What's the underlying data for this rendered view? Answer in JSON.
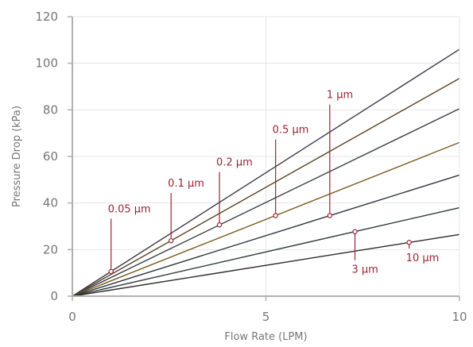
{
  "chart_data": {
    "type": "line",
    "title": "",
    "xlabel": "Flow Rate (LPM)",
    "ylabel": "Pressure Drop (kPa)",
    "xlim": [
      0,
      10
    ],
    "ylim": [
      0,
      120
    ],
    "xticks": [
      0,
      5,
      10
    ],
    "yticks": [
      0,
      20,
      40,
      60,
      80,
      100,
      120
    ],
    "grid": true,
    "legend": "none",
    "series": [
      {
        "name": "0.05 µm",
        "x": [
          0,
          10
        ],
        "y": [
          0,
          106
        ],
        "color": "#3d3a4a",
        "marker": {
          "x": 1.0,
          "y": 10.6
        }
      },
      {
        "name": "0.1 µm",
        "x": [
          0,
          10
        ],
        "y": [
          0,
          93.5
        ],
        "color": "#5a4324",
        "marker": {
          "x": 2.55,
          "y": 23.8
        }
      },
      {
        "name": "0.2 µm",
        "x": [
          0,
          10
        ],
        "y": [
          0,
          80.5
        ],
        "color": "#3a3f48",
        "marker": {
          "x": 3.8,
          "y": 30.6
        }
      },
      {
        "name": "0.5 µm",
        "x": [
          0,
          10
        ],
        "y": [
          0,
          66
        ],
        "color": "#7a5a1e",
        "marker": {
          "x": 5.25,
          "y": 34.6
        }
      },
      {
        "name": "1 µm",
        "x": [
          0,
          10
        ],
        "y": [
          0,
          52
        ],
        "color": "#2e3340",
        "marker": {
          "x": 6.65,
          "y": 34.6
        }
      },
      {
        "name": "3 µm",
        "x": [
          0,
          10
        ],
        "y": [
          0,
          38
        ],
        "color": "#2c3a3a",
        "marker": {
          "x": 7.3,
          "y": 27.7
        }
      },
      {
        "name": "10 µm",
        "x": [
          0,
          10
        ],
        "y": [
          0,
          26.5
        ],
        "color": "#2a2a2a",
        "marker": {
          "x": 8.7,
          "y": 23.1
        }
      }
    ],
    "annotations": [
      {
        "text": "0.05 µm",
        "series": 0,
        "label_y": 36,
        "label_side": "above"
      },
      {
        "text": "0.1 µm",
        "series": 1,
        "label_y": 47,
        "label_side": "above"
      },
      {
        "text": "0.2 µm",
        "series": 2,
        "label_y": 56,
        "label_side": "above"
      },
      {
        "text": "0.5 µm",
        "series": 3,
        "label_y": 70,
        "label_side": "above"
      },
      {
        "text": "1 µm",
        "series": 4,
        "label_y": 85,
        "label_side": "above"
      },
      {
        "text": "3 µm",
        "series": 5,
        "label_y": 10,
        "label_side": "below"
      },
      {
        "text": "10 µm",
        "series": 6,
        "label_y": 15,
        "label_side": "below"
      }
    ],
    "colors": {
      "annotation": "#9b2335",
      "axis": "#b0b0b0",
      "grid": "#e6e6e6"
    }
  }
}
